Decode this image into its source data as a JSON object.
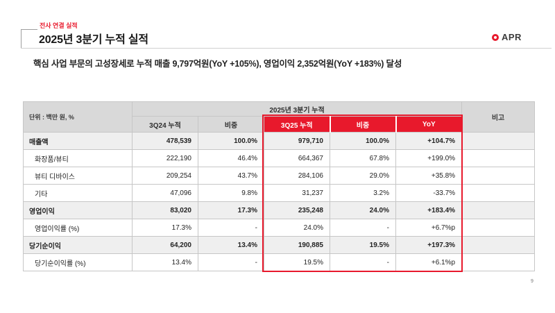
{
  "header": {
    "eyebrow": "전사 연결 실적",
    "title": "2025년 3분기 누적 실적",
    "logo_text": "APR"
  },
  "subtitle": "핵심 사업 부문의 고성장세로 누적 매출 9,797억원(YoY +105%), 영업이익 2,352억원(YoY +183%) 달성",
  "table": {
    "unit_label": "단위 : 백만 원, %",
    "group_header": "2025년 3분기 누적",
    "note_header": "비고",
    "columns": [
      {
        "label": "3Q24 누적",
        "highlight": false
      },
      {
        "label": "비중",
        "highlight": false
      },
      {
        "label": "3Q25 누적",
        "highlight": true
      },
      {
        "label": "비중",
        "highlight": true
      },
      {
        "label": "YoY",
        "highlight": true
      }
    ],
    "rows": [
      {
        "label": "매출액",
        "indent": false,
        "emphasis": true,
        "values": [
          "478,539",
          "100.0%",
          "979,710",
          "100.0%",
          "+104.7%"
        ],
        "note": ""
      },
      {
        "label": "화장품/뷰티",
        "indent": true,
        "emphasis": false,
        "values": [
          "222,190",
          "46.4%",
          "664,367",
          "67.8%",
          "+199.0%"
        ],
        "note": ""
      },
      {
        "label": "뷰티 디바이스",
        "indent": true,
        "emphasis": false,
        "values": [
          "209,254",
          "43.7%",
          "284,106",
          "29.0%",
          "+35.8%"
        ],
        "note": ""
      },
      {
        "label": "기타",
        "indent": true,
        "emphasis": false,
        "values": [
          "47,096",
          "9.8%",
          "31,237",
          "3.2%",
          "-33.7%"
        ],
        "note": ""
      },
      {
        "label": "영업이익",
        "indent": false,
        "emphasis": true,
        "values": [
          "83,020",
          "17.3%",
          "235,248",
          "24.0%",
          "+183.4%"
        ],
        "note": ""
      },
      {
        "label": "영업이익률 (%)",
        "indent": true,
        "emphasis": false,
        "values": [
          "17.3%",
          "-",
          "24.0%",
          "-",
          "+6.7%p"
        ],
        "note": ""
      },
      {
        "label": "당기순이익",
        "indent": false,
        "emphasis": true,
        "values": [
          "64,200",
          "13.4%",
          "190,885",
          "19.5%",
          "+197.3%"
        ],
        "note": ""
      },
      {
        "label": "당기순이익률 (%)",
        "indent": true,
        "emphasis": false,
        "values": [
          "13.4%",
          "-",
          "19.5%",
          "-",
          "+6.1%p"
        ],
        "note": ""
      }
    ]
  },
  "page_number": "9",
  "colors": {
    "accent": "#e8192c",
    "header_gray": "#d9d9d9",
    "emphasis_row": "#efefef"
  }
}
